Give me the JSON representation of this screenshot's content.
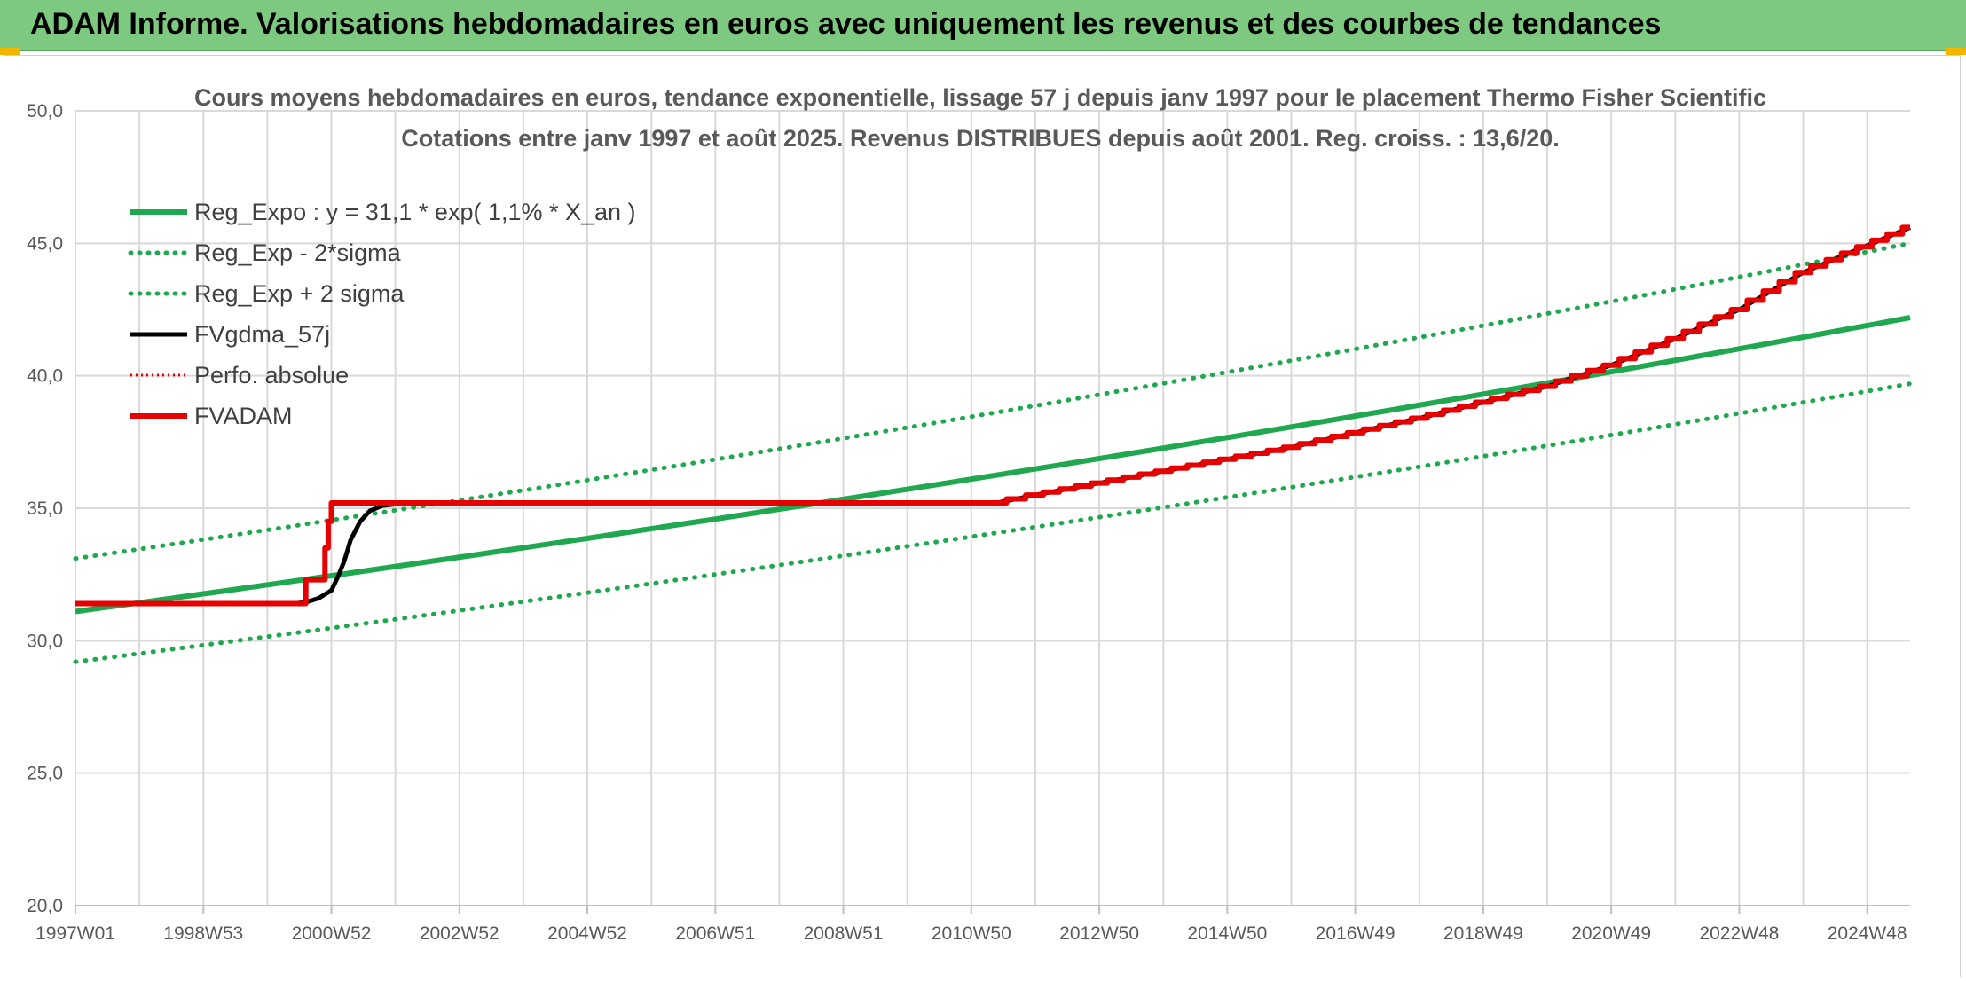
{
  "page": {
    "title": "ADAM Informe. Valorisations hebdomadaires en euros avec uniquement les revenus et des courbes de tendances"
  },
  "colors": {
    "title_bar": "#7dc97f",
    "reg_expo": "#1fa84f",
    "fv_gdma": "#000000",
    "fv_adam": "#e60000",
    "grid": "#d9d9d9",
    "accent_corner": "#f2b600"
  },
  "chart_data": {
    "type": "line",
    "title": "Cours moyens hebdomadaires en euros, tendance exponentielle, lissage 57 j depuis janv 1997 pour le placement Thermo Fisher Scientific",
    "subtitle": "Cotations entre janv 1997 et août 2025. Revenus DISTRIBUES depuis août 2001. Reg. croiss. : 13,6/20.",
    "xlabel": "",
    "ylabel": "",
    "xlim": [
      1997.0,
      2025.67
    ],
    "ylim": [
      20,
      50
    ],
    "y_ticks": [
      "20,0",
      "25,0",
      "30,0",
      "35,0",
      "40,0",
      "45,0",
      "50,0"
    ],
    "y_tick_values": [
      20,
      25,
      30,
      35,
      40,
      45,
      50
    ],
    "x_ticks": [
      "1997W01",
      "1998W53",
      "2000W52",
      "2002W52",
      "2004W52",
      "2006W51",
      "2008W51",
      "2010W50",
      "2012W50",
      "2014W50",
      "2016W49",
      "2018W49",
      "2020W49",
      "2022W48",
      "2024W48"
    ],
    "x_tick_values": [
      1997.0,
      1999.0,
      2001.0,
      2003.0,
      2005.0,
      2007.0,
      2009.0,
      2011.0,
      2013.0,
      2015.0,
      2017.0,
      2019.0,
      2021.0,
      2023.0,
      2025.0
    ],
    "grid": "horizontal and vertical",
    "legend_position": "top-left",
    "legend": [
      {
        "label": "Reg_Expo : y = 31,1 * exp( 1,1% *  X_an )",
        "style": "solid-green"
      },
      {
        "label": "Reg_Exp - 2*sigma",
        "style": "dotted-green"
      },
      {
        "label": "Reg_Exp + 2 sigma",
        "style": "dotted-green"
      },
      {
        "label": "FVgdma_57j",
        "style": "solid-black"
      },
      {
        "label": "Perfo. absolue",
        "style": "dotted-red"
      },
      {
        "label": "FVADAM",
        "style": "solid-red"
      }
    ],
    "series": [
      {
        "name": "Reg_Expo : y = 31,1 * exp( 1,1% *  X_an )",
        "x": [
          1997.0,
          2025.67
        ],
        "y": [
          31.1,
          42.2
        ]
      },
      {
        "name": "Reg_Exp - 2*sigma",
        "x": [
          1997.0,
          2025.67
        ],
        "y": [
          29.2,
          39.7
        ]
      },
      {
        "name": "Reg_Exp + 2 sigma",
        "x": [
          1997.0,
          2025.67
        ],
        "y": [
          33.1,
          45.0
        ]
      },
      {
        "name": "FVgdma_57j",
        "x": [
          1997.0,
          2000.4,
          2000.6,
          2000.8,
          2001.0,
          2001.1,
          2001.2,
          2001.3,
          2001.45,
          2001.6,
          2001.8,
          2002.2,
          2011.4,
          2012.0,
          2014.0,
          2016.0,
          2018.0,
          2020.0,
          2021.0,
          2022.0,
          2023.0,
          2024.0,
          2025.67
        ],
        "y": [
          31.4,
          31.4,
          31.45,
          31.6,
          31.9,
          32.4,
          33.0,
          33.8,
          34.5,
          34.9,
          35.1,
          35.2,
          35.2,
          35.5,
          36.4,
          37.3,
          38.4,
          39.6,
          40.4,
          41.4,
          42.5,
          43.9,
          45.6
        ]
      },
      {
        "name": "FVADAM",
        "x": [
          1997.0,
          2000.6,
          2000.6,
          2000.9,
          2000.9,
          2000.95,
          2000.95,
          2001.0,
          2001.0,
          2011.4,
          2012.0,
          2014.0,
          2016.0,
          2018.0,
          2020.0,
          2021.0,
          2022.0,
          2023.0,
          2024.0,
          2025.67
        ],
        "y": [
          31.4,
          31.4,
          32.3,
          32.3,
          33.5,
          33.5,
          34.5,
          34.5,
          35.2,
          35.2,
          35.5,
          36.4,
          37.3,
          38.4,
          39.6,
          40.4,
          41.4,
          42.5,
          43.9,
          45.6
        ]
      }
    ]
  }
}
